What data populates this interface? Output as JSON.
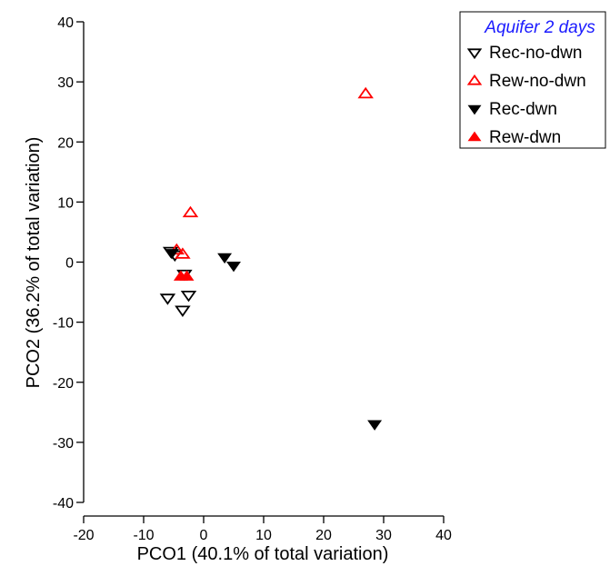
{
  "chart_data": {
    "type": "scatter",
    "title": "",
    "xlabel": "PCO1 (40.1% of total variation)",
    "ylabel": "PCO2 (36.2% of total variation)",
    "xlim": [
      -20,
      40
    ],
    "ylim": [
      -40,
      40
    ],
    "xticks": [
      -20,
      -10,
      0,
      10,
      20,
      30,
      40
    ],
    "yticks": [
      -40,
      -30,
      -20,
      -10,
      0,
      10,
      20,
      30,
      40
    ],
    "grid": false,
    "legend": {
      "title": "Aquifer 2 days",
      "title_color": "#1a1aff",
      "placement": "top-right"
    },
    "series": [
      {
        "name": "Rec-no-dwn",
        "marker": "triangle-down",
        "fill": "none",
        "stroke": "#000000",
        "points": [
          [
            -5.5,
            1.8
          ],
          [
            -4.8,
            1.2
          ],
          [
            -6,
            -6
          ],
          [
            -3.5,
            -8
          ],
          [
            -2.5,
            -5.5
          ],
          [
            -3.2,
            -2
          ]
        ]
      },
      {
        "name": "Rew-no-dwn",
        "marker": "triangle-up",
        "fill": "none",
        "stroke": "#ff0000",
        "points": [
          [
            27,
            28
          ],
          [
            -2.2,
            8.2
          ],
          [
            -3.5,
            1.3
          ],
          [
            -4.5,
            2
          ]
        ]
      },
      {
        "name": "Rec-dwn",
        "marker": "triangle-down",
        "fill": "#000000",
        "stroke": "#000000",
        "points": [
          [
            -5.3,
            1.5
          ],
          [
            3.5,
            0.8
          ],
          [
            5,
            -0.6
          ],
          [
            28.5,
            -27
          ]
        ]
      },
      {
        "name": "Rew-dwn",
        "marker": "triangle-up",
        "fill": "#ff0000",
        "stroke": "#ff0000",
        "points": [
          [
            -3.8,
            -2.4
          ],
          [
            -2.8,
            -2.4
          ]
        ]
      }
    ]
  }
}
